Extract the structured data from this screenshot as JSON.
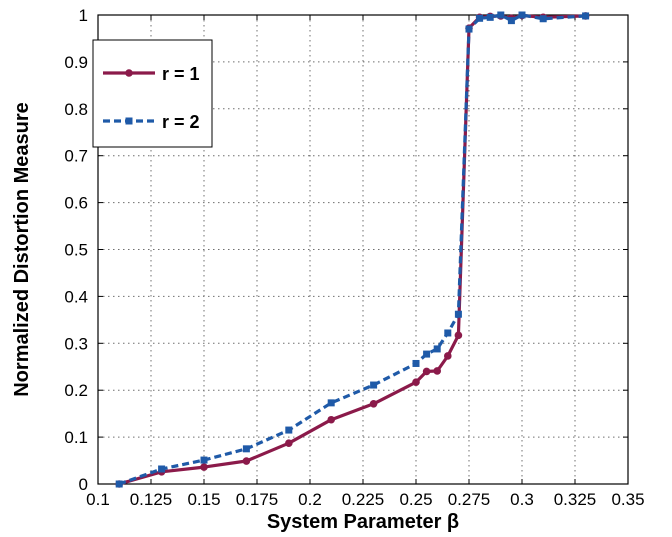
{
  "chart_data": {
    "type": "line",
    "title": "",
    "xlabel": "System Parameter β",
    "ylabel": "Normalized Distortion Measure",
    "xlim": [
      0.1,
      0.35
    ],
    "ylim": [
      0,
      1
    ],
    "x_ticks": [
      "0.1",
      "0.125",
      "0.15",
      "0.175",
      "0.2",
      "0.225",
      "0.25",
      "0.275",
      "0.3",
      "0.325",
      "0.35"
    ],
    "y_ticks": [
      "0",
      "0.1",
      "0.2",
      "0.3",
      "0.4",
      "0.5",
      "0.6",
      "0.7",
      "0.8",
      "0.9",
      "1"
    ],
    "grid": true,
    "legend_position": "top-left",
    "series": [
      {
        "name": "r = 1",
        "color": "#8b1a4a",
        "line_style": "solid",
        "marker": "circle",
        "x": [
          0.11,
          0.13,
          0.15,
          0.17,
          0.19,
          0.21,
          0.23,
          0.25,
          0.255,
          0.26,
          0.265,
          0.27,
          0.275,
          0.28,
          0.285,
          0.29,
          0.295,
          0.3,
          0.31,
          0.33
        ],
        "y": [
          0.0,
          0.026,
          0.036,
          0.049,
          0.087,
          0.137,
          0.171,
          0.217,
          0.24,
          0.241,
          0.273,
          0.317,
          0.972,
          0.995,
          0.997,
          0.998,
          0.993,
          0.999,
          0.995,
          0.998
        ]
      },
      {
        "name": "r = 2",
        "color": "#1f5aa8",
        "line_style": "dashed",
        "marker": "square",
        "x": [
          0.11,
          0.13,
          0.15,
          0.17,
          0.19,
          0.21,
          0.23,
          0.25,
          0.255,
          0.26,
          0.265,
          0.27,
          0.275,
          0.28,
          0.285,
          0.29,
          0.295,
          0.3,
          0.31,
          0.33
        ],
        "y": [
          0.0,
          0.032,
          0.051,
          0.075,
          0.115,
          0.173,
          0.211,
          0.257,
          0.277,
          0.288,
          0.322,
          0.362,
          0.97,
          0.993,
          0.995,
          1.0,
          0.988,
          1.0,
          0.992,
          0.998
        ]
      }
    ]
  }
}
